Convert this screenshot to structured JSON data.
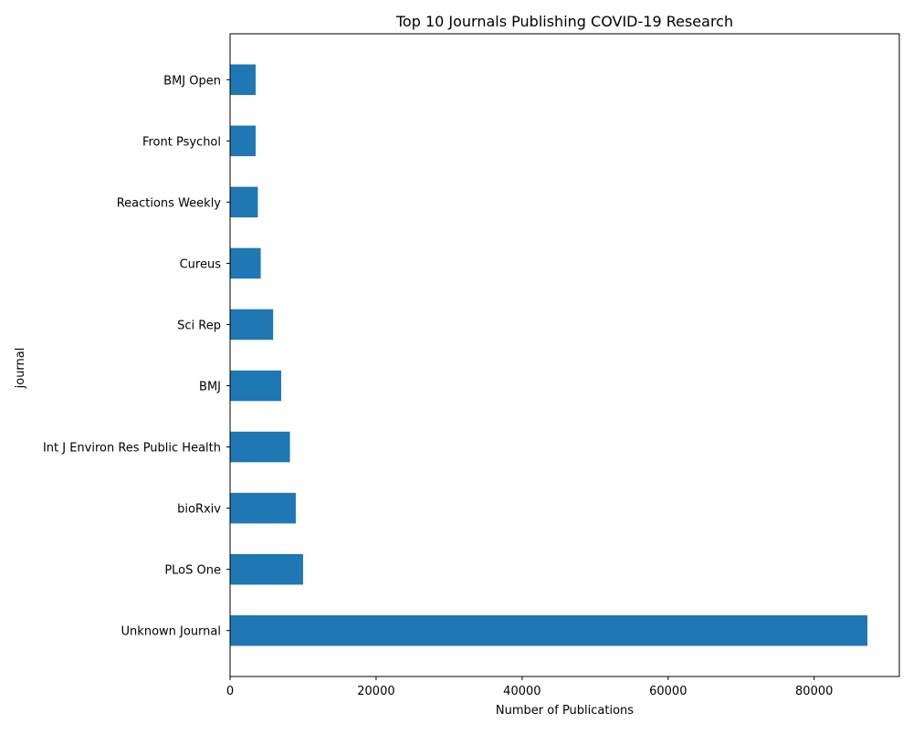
{
  "chart_data": {
    "type": "bar",
    "orientation": "horizontal",
    "title": "Top 10 Journals Publishing COVID-19 Research",
    "xlabel": "Number of Publications",
    "ylabel": "journal",
    "categories": [
      "Unknown Journal",
      "PLoS One",
      "bioRxiv",
      "Int J Environ Res Public Health",
      "BMJ",
      "Sci Rep",
      "Cureus",
      "Reactions Weekly",
      "Front Psychol",
      "BMJ Open"
    ],
    "values": [
      87300,
      10000,
      9000,
      8200,
      7000,
      5900,
      4200,
      3800,
      3500,
      3500
    ],
    "xticks": [
      0,
      20000,
      40000,
      60000,
      80000
    ],
    "xlim": [
      0,
      91665
    ],
    "grid": false,
    "legend": "none",
    "bar_color": "#1f77b4"
  }
}
